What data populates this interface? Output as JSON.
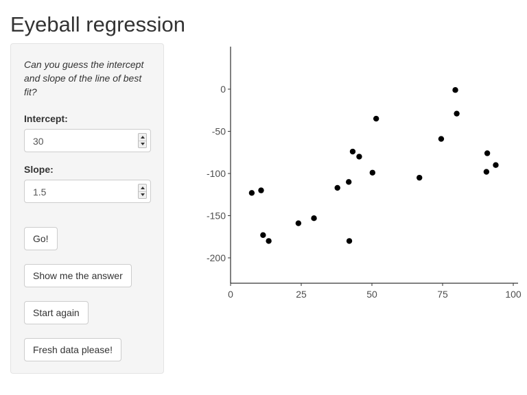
{
  "app": {
    "title": "Eyeball regression"
  },
  "sidebar": {
    "instructions": "Can you guess the intercept and slope of the line of best fit?",
    "intercept": {
      "label": "Intercept:",
      "value": "30"
    },
    "slope": {
      "label": "Slope:",
      "value": "1.5"
    },
    "buttons": {
      "go": "Go!",
      "show_answer": "Show me the answer",
      "start_again": "Start again",
      "fresh_data": "Fresh data please!"
    }
  },
  "chart_data": {
    "type": "scatter",
    "xlim": [
      0,
      100
    ],
    "ylim": [
      -230,
      50
    ],
    "x_ticks": [
      0,
      25,
      50,
      75,
      100
    ],
    "x_tick_labels": [
      "0",
      "25",
      "50",
      "75",
      "100"
    ],
    "y_ticks": [
      0,
      -50,
      -100,
      -150,
      -200
    ],
    "y_tick_labels": [
      "0",
      "-50",
      "-100",
      "-150",
      "-200"
    ],
    "grid": false,
    "point_color": "#000000",
    "points": [
      {
        "x": 7.5,
        "y": -123
      },
      {
        "x": 10.8,
        "y": -120
      },
      {
        "x": 11.5,
        "y": -173
      },
      {
        "x": 13.5,
        "y": -180
      },
      {
        "x": 24,
        "y": -159
      },
      {
        "x": 29.5,
        "y": -153
      },
      {
        "x": 37.8,
        "y": -117
      },
      {
        "x": 41.8,
        "y": -110
      },
      {
        "x": 42,
        "y": -180
      },
      {
        "x": 43.2,
        "y": -74
      },
      {
        "x": 45.5,
        "y": -80
      },
      {
        "x": 50.2,
        "y": -99
      },
      {
        "x": 51.5,
        "y": -35
      },
      {
        "x": 66.8,
        "y": -105
      },
      {
        "x": 74.5,
        "y": -59
      },
      {
        "x": 79.5,
        "y": -1
      },
      {
        "x": 80,
        "y": -29
      },
      {
        "x": 90.5,
        "y": -98
      },
      {
        "x": 90.8,
        "y": -76
      },
      {
        "x": 93.8,
        "y": -90
      }
    ]
  }
}
